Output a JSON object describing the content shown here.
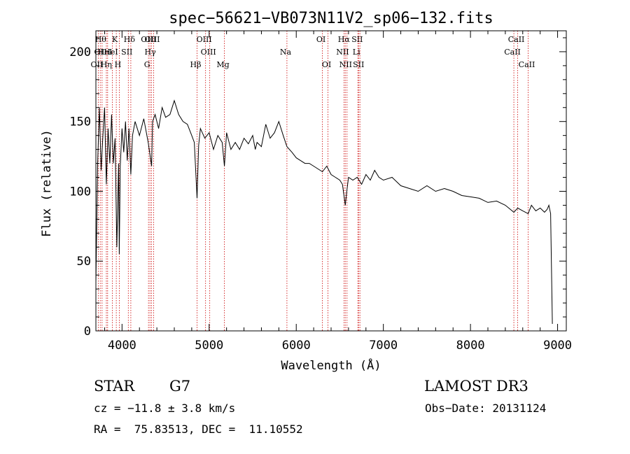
{
  "chart_data": {
    "type": "line",
    "title": "spec−56621−VB073N11V2_sp06−132.fits",
    "xlabel": "Wavelength (Å)",
    "ylabel": "Flux (relative)",
    "xlim": [
      3700,
      9100
    ],
    "ylim": [
      0,
      215
    ],
    "xticks": [
      4000,
      5000,
      6000,
      7000,
      8000,
      9000
    ],
    "yticks": [
      0,
      50,
      100,
      150,
      200
    ],
    "grid": false,
    "line_color": "#000000",
    "line_marker_color": "#cc0000",
    "series": [
      {
        "name": "flux",
        "x": [
          3700,
          3720,
          3740,
          3760,
          3780,
          3800,
          3820,
          3840,
          3860,
          3880,
          3900,
          3920,
          3940,
          3960,
          3968,
          3980,
          4000,
          4020,
          4040,
          4060,
          4080,
          4101,
          4120,
          4150,
          4200,
          4250,
          4300,
          4340,
          4350,
          4380,
          4420,
          4460,
          4500,
          4550,
          4600,
          4650,
          4700,
          4750,
          4800,
          4830,
          4861,
          4880,
          4900,
          4950,
          5000,
          5050,
          5100,
          5150,
          5175,
          5200,
          5250,
          5300,
          5350,
          5400,
          5450,
          5500,
          5530,
          5550,
          5600,
          5650,
          5700,
          5750,
          5800,
          5850,
          5893,
          5950,
          6000,
          6050,
          6100,
          6150,
          6200,
          6250,
          6300,
          6350,
          6400,
          6450,
          6500,
          6530,
          6563,
          6580,
          6600,
          6650,
          6700,
          6750,
          6800,
          6850,
          6900,
          6950,
          7000,
          7100,
          7200,
          7300,
          7400,
          7500,
          7600,
          7700,
          7800,
          7900,
          8000,
          8100,
          8200,
          8300,
          8400,
          8498,
          8542,
          8600,
          8662,
          8700,
          8750,
          8800,
          8850,
          8880,
          8900,
          8920,
          8940
        ],
        "y": [
          35,
          120,
          160,
          115,
          140,
          160,
          105,
          145,
          120,
          155,
          120,
          138,
          60,
          120,
          55,
          118,
          145,
          128,
          150,
          122,
          145,
          112,
          140,
          150,
          140,
          152,
          135,
          118,
          150,
          155,
          145,
          160,
          153,
          155,
          165,
          155,
          150,
          148,
          140,
          135,
          95,
          133,
          145,
          138,
          142,
          130,
          140,
          135,
          118,
          142,
          130,
          135,
          130,
          138,
          134,
          140,
          130,
          135,
          132,
          148,
          138,
          142,
          150,
          140,
          132,
          128,
          124,
          122,
          120,
          120,
          118,
          116,
          114,
          118,
          112,
          110,
          108,
          105,
          90,
          100,
          110,
          108,
          110,
          105,
          112,
          108,
          115,
          110,
          108,
          110,
          104,
          102,
          100,
          104,
          100,
          102,
          100,
          97,
          96,
          95,
          92,
          93,
          90,
          85,
          88,
          86,
          84,
          90,
          86,
          88,
          85,
          87,
          90,
          84,
          5
        ]
      }
    ],
    "line_markers": [
      {
        "wavelength": 3727,
        "label": "OII",
        "row": 3
      },
      {
        "wavelength": 3750,
        "label": "OI",
        "row": 2
      },
      {
        "wavelength": 3771,
        "label": "Hθ",
        "row": 1
      },
      {
        "wavelength": 3820,
        "label": "HeI",
        "row": 2
      },
      {
        "wavelength": 3835,
        "label": "Hη",
        "row": 3
      },
      {
        "wavelength": 3889,
        "label": "HeI",
        "row": 2
      },
      {
        "wavelength": 3934,
        "label": "K",
        "row": 1
      },
      {
        "wavelength": 3969,
        "label": "H",
        "row": 3
      },
      {
        "wavelength": 4072,
        "label": "SII",
        "row": 2
      },
      {
        "wavelength": 4101,
        "label": "Hδ",
        "row": 1
      },
      {
        "wavelength": 4304,
        "label": "G",
        "row": 3
      },
      {
        "wavelength": 4321,
        "label": "OIII",
        "row": 1
      },
      {
        "wavelength": 4340,
        "label": "Hγ",
        "row": 2
      },
      {
        "wavelength": 4363,
        "label": "OIII",
        "row": 1
      },
      {
        "wavelength": 4861,
        "label": "Hβ",
        "row": 3
      },
      {
        "wavelength": 4959,
        "label": "OIII",
        "row": 1
      },
      {
        "wavelength": 5007,
        "label": "OIII",
        "row": 2
      },
      {
        "wavelength": 5175,
        "label": "Mg",
        "row": 3
      },
      {
        "wavelength": 5893,
        "label": "Na",
        "row": 2
      },
      {
        "wavelength": 6300,
        "label": "OI",
        "row": 1
      },
      {
        "wavelength": 6364,
        "label": "OI",
        "row": 3
      },
      {
        "wavelength": 6548,
        "label": "NII",
        "row": 2
      },
      {
        "wavelength": 6563,
        "label": "Hα",
        "row": 1
      },
      {
        "wavelength": 6583,
        "label": "NII",
        "row": 3
      },
      {
        "wavelength": 6707,
        "label": "Li",
        "row": 2
      },
      {
        "wavelength": 6716,
        "label": "SII",
        "row": 1
      },
      {
        "wavelength": 6731,
        "label": "SII",
        "row": 3
      },
      {
        "wavelength": 8498,
        "label": "CaII",
        "row": 2
      },
      {
        "wavelength": 8542,
        "label": "CaII",
        "row": 1
      },
      {
        "wavelength": 8662,
        "label": "CaII",
        "row": 3
      }
    ]
  },
  "info": {
    "object_class": "STAR",
    "subclass": "G7",
    "survey": "LAMOST DR3",
    "cz": "cz = −11.8 ± 3.8 km/s",
    "obs_date": "Obs−Date: 20131124",
    "coords": "RA =  75.83513, DEC =  11.10552"
  }
}
